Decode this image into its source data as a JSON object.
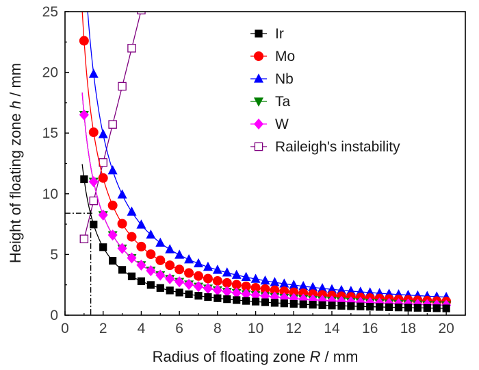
{
  "chart_data": {
    "type": "scatter",
    "title": "",
    "xlabel": {
      "prefix": "Radius of floating zone ",
      "var": "R",
      "suffix": " / mm"
    },
    "ylabel": {
      "prefix": "Height of floating zone ",
      "var": "h",
      "suffix": " / mm"
    },
    "xlim": [
      0,
      21
    ],
    "ylim": [
      0,
      25
    ],
    "x_ticks": [
      "0",
      "2",
      "4",
      "6",
      "8",
      "10",
      "12",
      "14",
      "16",
      "18",
      "20"
    ],
    "y_ticks": [
      "0",
      "5",
      "10",
      "15",
      "20",
      "25"
    ],
    "grid": false,
    "legend_position": "top-right",
    "x": [
      1.0,
      1.5,
      2.0,
      2.5,
      3.0,
      3.5,
      4.0,
      4.5,
      5.0,
      5.5,
      6.0,
      6.5,
      7.0,
      7.5,
      8.0,
      8.5,
      9.0,
      9.5,
      10.0,
      10.5,
      11.0,
      11.5,
      12.0,
      12.5,
      13.0,
      13.5,
      14.0,
      14.5,
      15.0,
      15.5,
      16.0,
      16.5,
      17.0,
      17.5,
      18.0,
      18.5,
      19.0,
      19.5,
      20.0
    ],
    "series": [
      {
        "name": "Ir",
        "color": "#000000",
        "marker": "square-filled",
        "k": 11.2
      },
      {
        "name": "Mo",
        "color": "#ff0000",
        "marker": "circle-filled",
        "k": 22.6
      },
      {
        "name": "Nb",
        "color": "#0000ff",
        "marker": "triangle-up-filled",
        "k": 29.8
      },
      {
        "name": "Ta",
        "color": "#008000",
        "marker": "triangle-down-filled",
        "k": 16.5
      },
      {
        "name": "W",
        "color": "#ff00ff",
        "marker": "diamond-filled",
        "k": 16.5
      },
      {
        "name": "Raileigh's instability",
        "color": "#7f007f",
        "marker": "square-open",
        "x": [
          1.0,
          1.5,
          2.0,
          2.5,
          3.0,
          3.5,
          4.0
        ],
        "y": [
          6.28,
          9.42,
          12.57,
          15.71,
          18.85,
          21.99,
          25.13
        ]
      }
    ],
    "reference_point": {
      "x": 1.35,
      "y": 8.4
    }
  }
}
